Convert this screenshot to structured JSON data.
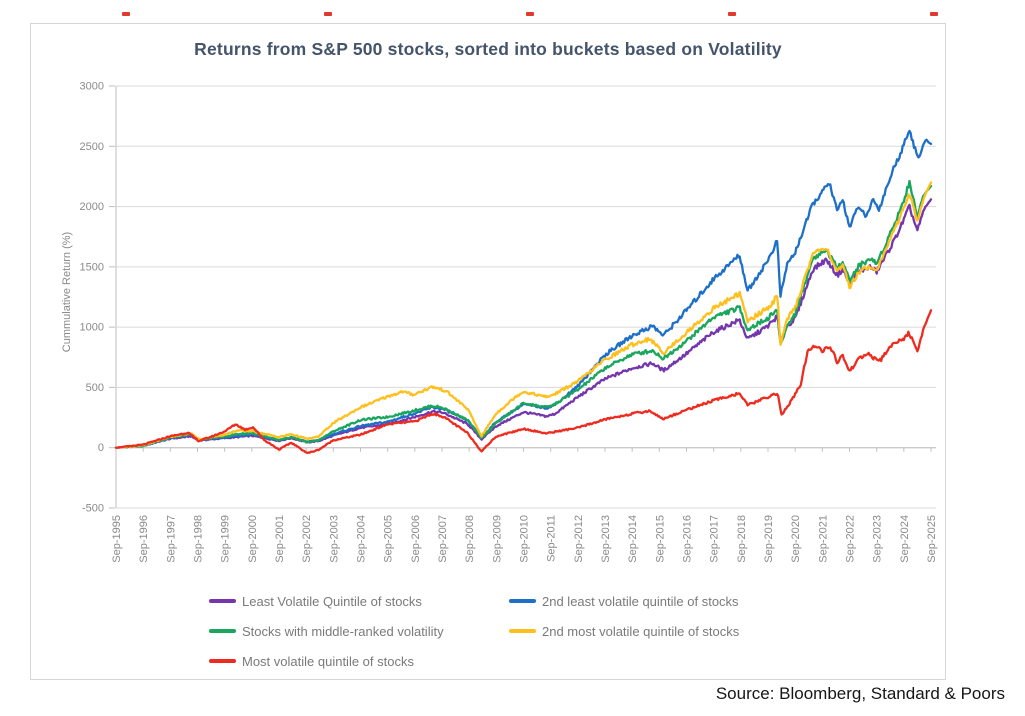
{
  "figure": {
    "title": "Returns from S&P 500 stocks, sorted into buckets based on Volatility",
    "title_color": "#44546a",
    "source": "Source: Bloomberg, Standard & Poors"
  },
  "chart_data": {
    "type": "line",
    "title": "Returns from S&P 500 stocks, sorted into buckets based on Volatility",
    "xlabel": "",
    "ylabel": "Cummulative Return (%)",
    "ylim": [
      -500,
      3000
    ],
    "y_ticks": [
      -500,
      0,
      500,
      1000,
      1500,
      2000,
      2500,
      3000
    ],
    "x_tick_labels": [
      "Sep-1995",
      "Sep-1996",
      "Sep-1997",
      "Sep-1998",
      "Sep-1999",
      "Sep-2000",
      "Sep-2001",
      "Sep-2002",
      "Sep-2003",
      "Sep-2004",
      "Sep-2005",
      "Sep-2006",
      "Sep-2007",
      "Sep-2008",
      "Sep-2009",
      "Sep-2010",
      "Sep-2011",
      "Sep-2012",
      "Sep-2013",
      "Sep-2014",
      "Sep-2015",
      "Sep-2016",
      "Sep-2017",
      "Sep-2018",
      "Sep-2019",
      "Sep-2020",
      "Sep-2021",
      "Sep-2022",
      "Sep-2023",
      "Sep-2024",
      "Sep-2025"
    ],
    "x_range_years": [
      1995.75,
      2025.75
    ],
    "grid": true,
    "gridline_color": "#dadada",
    "axis_color": "#bfbfbf",
    "tick_label_color": "#8a8a8a",
    "legend_position": "bottom",
    "legend_rows": [
      [
        0,
        1
      ],
      [
        2,
        3
      ],
      [
        4
      ]
    ],
    "series": [
      {
        "name": "Least Volatile Quintile of stocks",
        "color": "#7536ad",
        "points": [
          [
            1995.75,
            0
          ],
          [
            1996.75,
            18
          ],
          [
            1997.75,
            75
          ],
          [
            1998.5,
            95
          ],
          [
            1998.8,
            60
          ],
          [
            1999.75,
            80
          ],
          [
            2000.2,
            88
          ],
          [
            2000.75,
            100
          ],
          [
            2001.75,
            58
          ],
          [
            2002.2,
            80
          ],
          [
            2002.8,
            45
          ],
          [
            2003.2,
            55
          ],
          [
            2003.75,
            100
          ],
          [
            2004.75,
            165
          ],
          [
            2005.75,
            195
          ],
          [
            2006.75,
            255
          ],
          [
            2007.4,
            300
          ],
          [
            2007.8,
            290
          ],
          [
            2008.7,
            195
          ],
          [
            2009.2,
            70
          ],
          [
            2009.75,
            180
          ],
          [
            2010.75,
            295
          ],
          [
            2011.6,
            260
          ],
          [
            2011.9,
            280
          ],
          [
            2012.75,
            420
          ],
          [
            2013.75,
            570
          ],
          [
            2014.75,
            660
          ],
          [
            2015.5,
            700
          ],
          [
            2015.9,
            640
          ],
          [
            2016.75,
            780
          ],
          [
            2017.75,
            960
          ],
          [
            2018.7,
            1060
          ],
          [
            2019.0,
            900
          ],
          [
            2019.75,
            1010
          ],
          [
            2020.1,
            1090
          ],
          [
            2020.2,
            880
          ],
          [
            2020.45,
            1010
          ],
          [
            2020.75,
            1070
          ],
          [
            2021.4,
            1480
          ],
          [
            2021.9,
            1560
          ],
          [
            2022.3,
            1430
          ],
          [
            2022.5,
            1480
          ],
          [
            2022.75,
            1360
          ],
          [
            2023.1,
            1460
          ],
          [
            2023.5,
            1500
          ],
          [
            2023.75,
            1460
          ],
          [
            2024.0,
            1560
          ],
          [
            2024.4,
            1720
          ],
          [
            2024.75,
            1890
          ],
          [
            2024.95,
            2000
          ],
          [
            2025.25,
            1800
          ],
          [
            2025.5,
            1980
          ],
          [
            2025.75,
            2060
          ]
        ]
      },
      {
        "name": "2nd least volatile quintile of stocks",
        "color": "#1e6fc8",
        "points": [
          [
            1995.75,
            0
          ],
          [
            1996.75,
            15
          ],
          [
            1997.75,
            80
          ],
          [
            1998.5,
            105
          ],
          [
            1998.8,
            65
          ],
          [
            1999.75,
            85
          ],
          [
            2000.2,
            95
          ],
          [
            2000.75,
            112
          ],
          [
            2001.75,
            62
          ],
          [
            2002.2,
            85
          ],
          [
            2002.8,
            50
          ],
          [
            2003.2,
            62
          ],
          [
            2003.75,
            112
          ],
          [
            2004.75,
            180
          ],
          [
            2005.75,
            215
          ],
          [
            2006.75,
            285
          ],
          [
            2007.4,
            335
          ],
          [
            2007.8,
            320
          ],
          [
            2008.7,
            225
          ],
          [
            2009.2,
            85
          ],
          [
            2009.75,
            215
          ],
          [
            2010.75,
            360
          ],
          [
            2011.6,
            330
          ],
          [
            2011.9,
            355
          ],
          [
            2012.75,
            510
          ],
          [
            2013.75,
            770
          ],
          [
            2014.75,
            930
          ],
          [
            2015.5,
            1010
          ],
          [
            2015.9,
            930
          ],
          [
            2016.75,
            1140
          ],
          [
            2017.75,
            1400
          ],
          [
            2018.7,
            1600
          ],
          [
            2019.0,
            1300
          ],
          [
            2019.75,
            1555
          ],
          [
            2020.1,
            1720
          ],
          [
            2020.2,
            1245
          ],
          [
            2020.45,
            1520
          ],
          [
            2020.75,
            1620
          ],
          [
            2021.4,
            2020
          ],
          [
            2021.75,
            2120
          ],
          [
            2022.0,
            2200
          ],
          [
            2022.3,
            1960
          ],
          [
            2022.5,
            2060
          ],
          [
            2022.75,
            1830
          ],
          [
            2023.1,
            2010
          ],
          [
            2023.35,
            1900
          ],
          [
            2023.6,
            2060
          ],
          [
            2023.85,
            1980
          ],
          [
            2024.1,
            2150
          ],
          [
            2024.4,
            2330
          ],
          [
            2024.7,
            2480
          ],
          [
            2024.95,
            2650
          ],
          [
            2025.15,
            2480
          ],
          [
            2025.3,
            2400
          ],
          [
            2025.55,
            2555
          ],
          [
            2025.75,
            2520
          ]
        ]
      },
      {
        "name": "Stocks with middle-ranked volatility",
        "color": "#1aa65c",
        "points": [
          [
            1995.75,
            0
          ],
          [
            1996.75,
            17
          ],
          [
            1997.75,
            85
          ],
          [
            1998.5,
            110
          ],
          [
            1998.8,
            65
          ],
          [
            1999.75,
            95
          ],
          [
            2000.2,
            112
          ],
          [
            2000.75,
            122
          ],
          [
            2001.75,
            62
          ],
          [
            2002.2,
            88
          ],
          [
            2002.8,
            46
          ],
          [
            2003.2,
            62
          ],
          [
            2003.75,
            135
          ],
          [
            2004.75,
            230
          ],
          [
            2005.75,
            255
          ],
          [
            2006.75,
            310
          ],
          [
            2007.4,
            348
          ],
          [
            2007.8,
            330
          ],
          [
            2008.7,
            228
          ],
          [
            2009.2,
            78
          ],
          [
            2009.75,
            205
          ],
          [
            2010.75,
            370
          ],
          [
            2011.6,
            335
          ],
          [
            2011.9,
            360
          ],
          [
            2012.75,
            480
          ],
          [
            2013.75,
            660
          ],
          [
            2014.75,
            775
          ],
          [
            2015.5,
            805
          ],
          [
            2015.9,
            740
          ],
          [
            2016.75,
            885
          ],
          [
            2017.75,
            1085
          ],
          [
            2018.7,
            1160
          ],
          [
            2019.0,
            980
          ],
          [
            2019.75,
            1075
          ],
          [
            2020.1,
            1150
          ],
          [
            2020.2,
            845
          ],
          [
            2020.45,
            1010
          ],
          [
            2020.75,
            1110
          ],
          [
            2021.4,
            1570
          ],
          [
            2021.9,
            1640
          ],
          [
            2022.3,
            1490
          ],
          [
            2022.5,
            1555
          ],
          [
            2022.75,
            1385
          ],
          [
            2023.1,
            1510
          ],
          [
            2023.5,
            1565
          ],
          [
            2023.75,
            1530
          ],
          [
            2024.0,
            1650
          ],
          [
            2024.4,
            1855
          ],
          [
            2024.75,
            2050
          ],
          [
            2024.95,
            2200
          ],
          [
            2025.25,
            1925
          ],
          [
            2025.5,
            2105
          ],
          [
            2025.75,
            2170
          ]
        ]
      },
      {
        "name": "2nd most volatile quintile of stocks",
        "color": "#ffc01e",
        "points": [
          [
            1995.75,
            0
          ],
          [
            1996.75,
            20
          ],
          [
            1997.75,
            92
          ],
          [
            1998.5,
            120
          ],
          [
            1998.8,
            70
          ],
          [
            1999.75,
            108
          ],
          [
            2000.2,
            142
          ],
          [
            2000.75,
            138
          ],
          [
            2001.75,
            88
          ],
          [
            2002.2,
            112
          ],
          [
            2002.8,
            72
          ],
          [
            2003.2,
            92
          ],
          [
            2003.75,
            205
          ],
          [
            2004.75,
            335
          ],
          [
            2005.75,
            425
          ],
          [
            2006.3,
            465
          ],
          [
            2006.7,
            440
          ],
          [
            2007.4,
            505
          ],
          [
            2007.9,
            470
          ],
          [
            2008.7,
            320
          ],
          [
            2009.2,
            95
          ],
          [
            2009.75,
            285
          ],
          [
            2010.5,
            430
          ],
          [
            2010.75,
            465
          ],
          [
            2011.6,
            420
          ],
          [
            2011.9,
            445
          ],
          [
            2012.75,
            550
          ],
          [
            2013.75,
            730
          ],
          [
            2014.75,
            855
          ],
          [
            2015.4,
            905
          ],
          [
            2015.9,
            785
          ],
          [
            2016.75,
            955
          ],
          [
            2017.75,
            1155
          ],
          [
            2018.7,
            1280
          ],
          [
            2019.0,
            1050
          ],
          [
            2019.75,
            1160
          ],
          [
            2020.1,
            1255
          ],
          [
            2020.2,
            860
          ],
          [
            2020.45,
            1060
          ],
          [
            2020.75,
            1160
          ],
          [
            2021.4,
            1610
          ],
          [
            2021.9,
            1665
          ],
          [
            2022.3,
            1450
          ],
          [
            2022.5,
            1510
          ],
          [
            2022.75,
            1330
          ],
          [
            2023.1,
            1460
          ],
          [
            2023.5,
            1510
          ],
          [
            2023.75,
            1470
          ],
          [
            2024.0,
            1600
          ],
          [
            2024.4,
            1805
          ],
          [
            2024.75,
            1990
          ],
          [
            2024.95,
            2115
          ],
          [
            2025.25,
            1875
          ],
          [
            2025.5,
            2085
          ],
          [
            2025.75,
            2200
          ]
        ]
      },
      {
        "name": "Most volatile quintile of stocks",
        "color": "#ee2b1f",
        "points": [
          [
            1995.75,
            0
          ],
          [
            1996.75,
            25
          ],
          [
            1997.75,
            95
          ],
          [
            1998.4,
            125
          ],
          [
            1998.8,
            55
          ],
          [
            1999.3,
            95
          ],
          [
            1999.75,
            135
          ],
          [
            2000.15,
            195
          ],
          [
            2000.5,
            150
          ],
          [
            2000.8,
            170
          ],
          [
            2001.2,
            65
          ],
          [
            2001.75,
            -15
          ],
          [
            2002.2,
            42
          ],
          [
            2002.8,
            -45
          ],
          [
            2003.2,
            -18
          ],
          [
            2003.75,
            62
          ],
          [
            2004.75,
            108
          ],
          [
            2005.75,
            195
          ],
          [
            2006.75,
            218
          ],
          [
            2007.4,
            282
          ],
          [
            2007.8,
            258
          ],
          [
            2008.7,
            120
          ],
          [
            2009.2,
            -30
          ],
          [
            2009.75,
            95
          ],
          [
            2010.5,
            140
          ],
          [
            2010.75,
            158
          ],
          [
            2011.6,
            118
          ],
          [
            2011.9,
            132
          ],
          [
            2012.75,
            165
          ],
          [
            2013.75,
            235
          ],
          [
            2014.75,
            282
          ],
          [
            2015.4,
            305
          ],
          [
            2015.9,
            238
          ],
          [
            2016.75,
            315
          ],
          [
            2017.75,
            392
          ],
          [
            2018.7,
            452
          ],
          [
            2019.0,
            352
          ],
          [
            2019.75,
            422
          ],
          [
            2020.1,
            452
          ],
          [
            2020.25,
            272
          ],
          [
            2020.6,
            385
          ],
          [
            2020.95,
            520
          ],
          [
            2021.2,
            790
          ],
          [
            2021.5,
            855
          ],
          [
            2021.75,
            805
          ],
          [
            2022.05,
            835
          ],
          [
            2022.3,
            705
          ],
          [
            2022.5,
            765
          ],
          [
            2022.75,
            635
          ],
          [
            2023.1,
            735
          ],
          [
            2023.4,
            785
          ],
          [
            2023.65,
            740
          ],
          [
            2023.9,
            725
          ],
          [
            2024.2,
            825
          ],
          [
            2024.5,
            885
          ],
          [
            2024.75,
            905
          ],
          [
            2024.95,
            955
          ],
          [
            2025.1,
            865
          ],
          [
            2025.25,
            785
          ],
          [
            2025.5,
            1005
          ],
          [
            2025.75,
            1140
          ]
        ]
      }
    ]
  }
}
